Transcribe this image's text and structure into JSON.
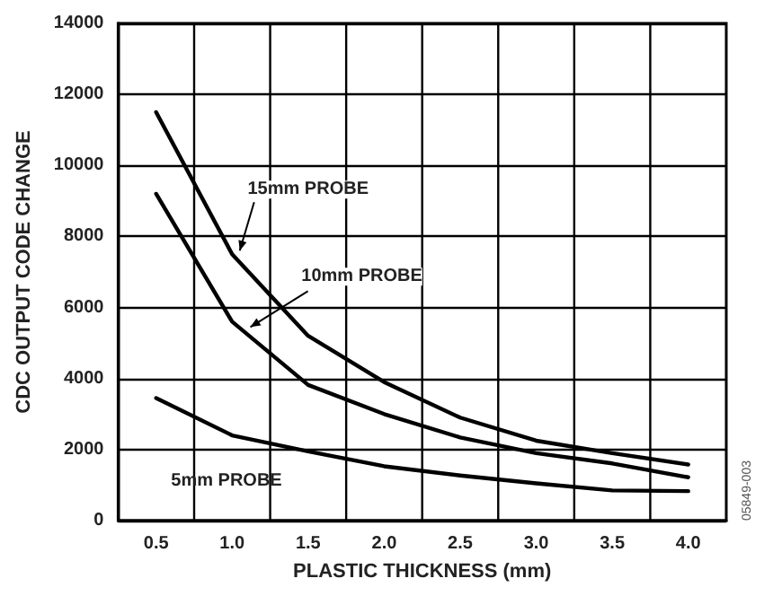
{
  "chart_data": {
    "type": "line",
    "xlabel": "PLASTIC THICKNESS (mm)",
    "ylabel": "CDC OUTPUT CODE CHANGE",
    "x": [
      0.5,
      1.0,
      1.5,
      2.0,
      2.5,
      3.0,
      3.5,
      4.0
    ],
    "series": [
      {
        "color": "#000000",
        "values": [
          11500,
          7500,
          5200,
          3900,
          2900,
          2250,
          1900,
          1580
        ]
      },
      {
        "color": "#000000",
        "values": [
          9200,
          5600,
          3820,
          3000,
          2340,
          1900,
          1610,
          1220
        ]
      },
      {
        "color": "#000000",
        "values": [
          3450,
          2400,
          1950,
          1530,
          1270,
          1050,
          850,
          830
        ]
      }
    ],
    "xlim": [
      0.25,
      4.25
    ],
    "xticks": [
      0.5,
      {
        "value": 0.75,
        "label": null
      },
      "1.0",
      {
        "value": 1.25,
        "label": null
      },
      1.5,
      {
        "value": 1.75,
        "label": null
      },
      "2.0",
      {
        "value": 2.25,
        "label": null
      },
      2.5,
      {
        "value": 2.75,
        "label": null
      },
      "3.0",
      {
        "value": 3.25,
        "label": null
      },
      3.5,
      {
        "value": 3.75,
        "label": null
      },
      "4.0"
    ],
    "ylim": [
      0,
      14000
    ],
    "yticks": [
      0,
      2000,
      4000,
      6000,
      8000,
      10000,
      12000,
      14000
    ],
    "grid": true,
    "marker": "none",
    "line_style": "solid",
    "annotations": [
      {
        "text": "15mm PROBE",
        "x": 1.05,
        "y": 7600
      },
      {
        "text": "10mm PROBE",
        "x": 1.12,
        "y": 5450
      },
      "5mm PROBE",
      "05849-003"
    ]
  }
}
